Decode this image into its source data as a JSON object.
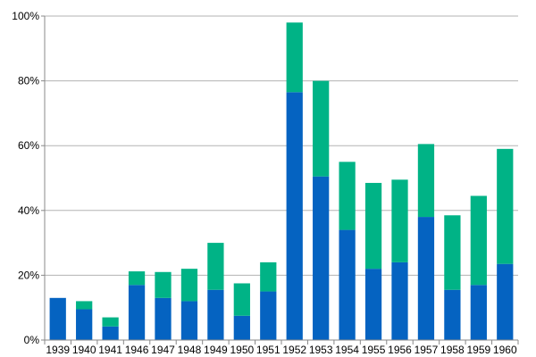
{
  "chart_data": {
    "type": "bar",
    "stacked": true,
    "categories": [
      "1939",
      "1940",
      "1941",
      "1946",
      "1947",
      "1948",
      "1949",
      "1950",
      "1951",
      "1952",
      "1953",
      "1954",
      "1955",
      "1956",
      "1957",
      "1958",
      "1959",
      "1960"
    ],
    "series": [
      {
        "color": "#0563c1",
        "values": [
          13,
          9.5,
          4.2,
          17,
          13,
          12,
          15.5,
          7.5,
          15,
          76.5,
          50.5,
          34,
          22,
          24,
          38,
          15.5,
          17,
          23.5
        ]
      },
      {
        "color": "#00b386",
        "values": [
          0,
          2.5,
          2.8,
          4.2,
          8,
          10,
          14.5,
          10,
          9,
          21.5,
          29.5,
          21,
          26.5,
          25.5,
          22.5,
          23,
          27.5,
          35.5
        ]
      }
    ],
    "ylim": [
      0,
      100
    ],
    "yticks": [
      0,
      20,
      40,
      60,
      80,
      100
    ],
    "ytick_labels": [
      "0%",
      "20%",
      "40%",
      "60%",
      "80%",
      "100%"
    ],
    "grid": true,
    "legend": "none"
  }
}
